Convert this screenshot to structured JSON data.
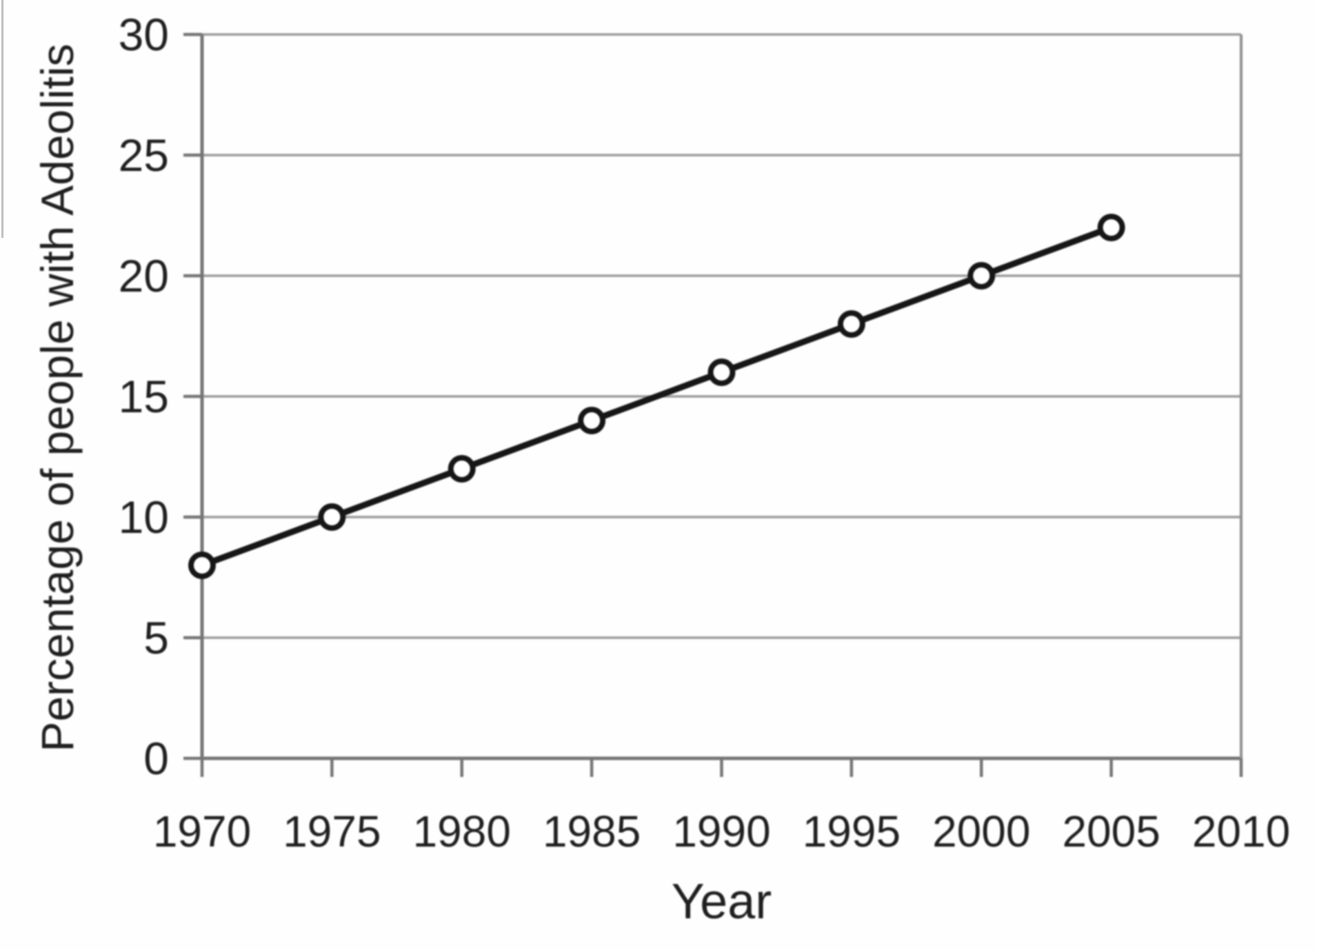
{
  "chart_data": {
    "type": "line",
    "title": "",
    "xlabel": "Year",
    "ylabel": "Percentage of people with Adeolitis",
    "x": [
      1970,
      1975,
      1980,
      1985,
      1990,
      1995,
      2000,
      2005
    ],
    "series": [
      {
        "name": "Percentage of people with Adeolitis",
        "values": [
          8,
          10,
          12,
          14,
          16,
          18,
          20,
          22
        ]
      }
    ],
    "xticks": [
      "1970",
      "1975",
      "1980",
      "1985",
      "1990",
      "1995",
      "2000",
      "2005",
      "2010"
    ],
    "xtick_values": [
      1970,
      1975,
      1980,
      1985,
      1990,
      1995,
      2000,
      2005,
      2010
    ],
    "yticks": [
      "0",
      "5",
      "10",
      "15",
      "20",
      "25",
      "30"
    ],
    "ytick_values": [
      0,
      5,
      10,
      15,
      20,
      25,
      30
    ],
    "xlim": [
      1970,
      2010
    ],
    "ylim": [
      0,
      30
    ],
    "grid": "horizontal",
    "legend": "none",
    "marker": "open-circle",
    "colors": {
      "line": "#161616",
      "marker_fill": "#ffffff",
      "marker_stroke": "#161616",
      "grid": "#9a9a9a",
      "axis": "#757575",
      "border": "#8f8f8f",
      "text": "#1f1f1f"
    }
  }
}
